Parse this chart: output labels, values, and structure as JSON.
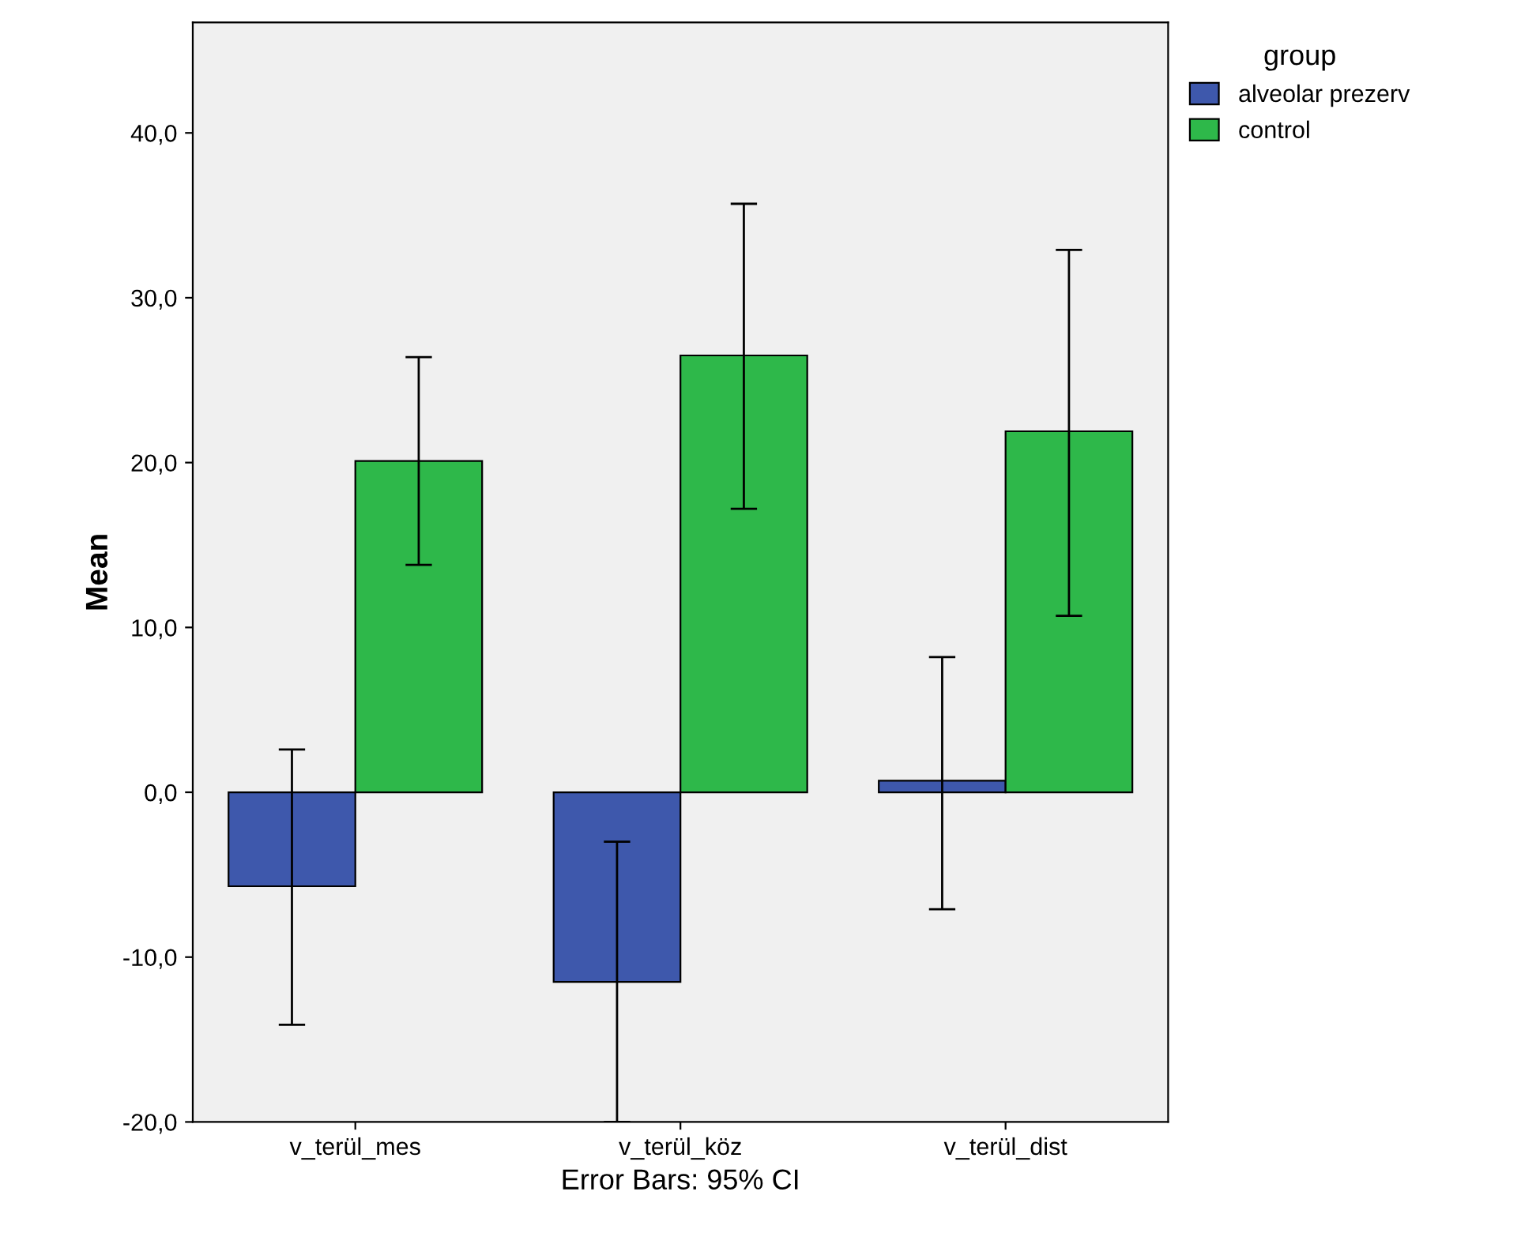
{
  "chart_data": {
    "type": "bar",
    "xlabel": "Error Bars: 95% CI",
    "ylabel": "Mean",
    "legend_title": "group",
    "legend": "top right",
    "grid": false,
    "categories": [
      "v_terül_mes",
      "v_terül_köz",
      "v_terül_dist"
    ],
    "series": [
      {
        "name": "alveolar prezerv",
        "color": "#3e58ac",
        "values": [
          -5.7,
          -11.5,
          0.7
        ],
        "errors": [
          [
            -14.1,
            2.6
          ],
          [
            -20.0,
            -3.0
          ],
          [
            -7.1,
            8.2
          ]
        ]
      },
      {
        "name": "control",
        "color": "#2eb84a",
        "values": [
          20.1,
          26.5,
          21.9
        ],
        "errors": [
          [
            13.8,
            26.4
          ],
          [
            17.2,
            35.7
          ],
          [
            10.7,
            32.9
          ]
        ]
      }
    ],
    "ylim": [
      -20,
      46.7
    ],
    "yticks": [
      {
        "value": -20,
        "label": "-20,0"
      },
      {
        "value": -10,
        "label": "-10,0"
      },
      {
        "value": 0,
        "label": "0,0"
      },
      {
        "value": 10,
        "label": "10,0"
      },
      {
        "value": 20,
        "label": "20,0"
      },
      {
        "value": 30,
        "label": "30,0"
      },
      {
        "value": 40,
        "label": "40,0"
      }
    ]
  }
}
